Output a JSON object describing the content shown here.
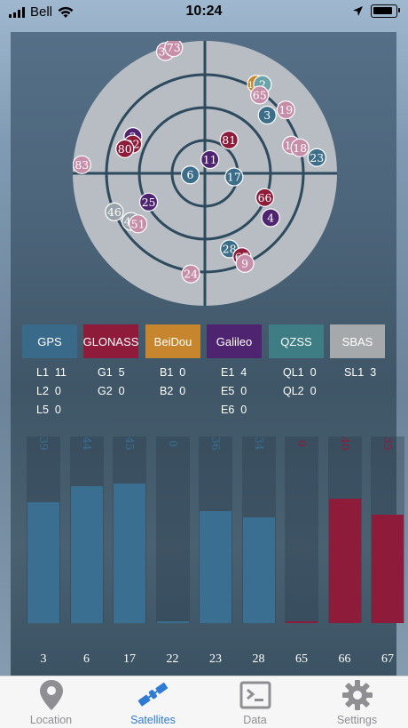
{
  "status_bar": {
    "carrier": "Bell",
    "time": "10:24"
  },
  "sky_plot": {
    "satellites": [
      {
        "id": "30",
        "color": "#c78ea9",
        "az": 342,
        "el": 3
      },
      {
        "id": "73",
        "color": "#c78ea9",
        "az": 346,
        "el": 2
      },
      {
        "id": "114",
        "color": "#c7862d",
        "az": 30,
        "el": 20
      },
      {
        "id": "2",
        "color": "#6ba3a8",
        "az": 33,
        "el": 18
      },
      {
        "id": "65",
        "color": "#c78ea9",
        "az": 35,
        "el": 25
      },
      {
        "id": "3",
        "color": "#3c6e8a",
        "az": 47,
        "el": 32
      },
      {
        "id": "19",
        "color": "#c78ea9",
        "az": 52,
        "el": 20
      },
      {
        "id": "2",
        "color": "#4e2470",
        "az": 297,
        "el": 35
      },
      {
        "id": "82",
        "color": "#8e1b3a",
        "az": 292,
        "el": 37
      },
      {
        "id": "80",
        "color": "#8e1b3a",
        "az": 287,
        "el": 33
      },
      {
        "id": "81",
        "color": "#8e1b3a",
        "az": 36,
        "el": 62
      },
      {
        "id": "11",
        "color": "#4e2470",
        "az": 20,
        "el": 80
      },
      {
        "id": "12",
        "color": "#c78ea9",
        "az": 72,
        "el": 28
      },
      {
        "id": "18",
        "color": "#c78ea9",
        "az": 75,
        "el": 23
      },
      {
        "id": "23",
        "color": "#3c6e8a",
        "az": 82,
        "el": 13
      },
      {
        "id": "83",
        "color": "#c78ea9",
        "az": 274,
        "el": 6
      },
      {
        "id": "6",
        "color": "#3c6e8a",
        "az": 264,
        "el": 80
      },
      {
        "id": "17",
        "color": "#3c6e8a",
        "az": 97,
        "el": 70
      },
      {
        "id": "66",
        "color": "#8e1b3a",
        "az": 112,
        "el": 46
      },
      {
        "id": "4",
        "color": "#4e2470",
        "az": 124,
        "el": 36
      },
      {
        "id": "25",
        "color": "#4e2470",
        "az": 243,
        "el": 47
      },
      {
        "id": "46",
        "color": "#9aa3ab",
        "az": 247,
        "el": 23
      },
      {
        "id": "44",
        "color": "#9aa3ab",
        "az": 237,
        "el": 30
      },
      {
        "id": "51",
        "color": "#c78ea9",
        "az": 233,
        "el": 33
      },
      {
        "id": "28",
        "color": "#3c6e8a",
        "az": 162,
        "el": 36
      },
      {
        "id": "67",
        "color": "#8e1b3a",
        "az": 156,
        "el": 28
      },
      {
        "id": "9",
        "color": "#c78ea9",
        "az": 156,
        "el": 23
      },
      {
        "id": "24",
        "color": "#c78ea9",
        "az": 188,
        "el": 21
      }
    ]
  },
  "constellations": [
    {
      "label": "GPS",
      "color": "#3a6a89",
      "counts": [
        {
          "name": "L1",
          "value": "11"
        },
        {
          "name": "L2",
          "value": "0"
        },
        {
          "name": "L5",
          "value": "0"
        }
      ]
    },
    {
      "label": "GLONASS",
      "color": "#8e1b3a",
      "counts": [
        {
          "name": "G1",
          "value": "5"
        },
        {
          "name": "G2",
          "value": "0"
        }
      ]
    },
    {
      "label": "BeiDou",
      "color": "#c7862d",
      "counts": [
        {
          "name": "B1",
          "value": "0"
        },
        {
          "name": "B2",
          "value": "0"
        }
      ]
    },
    {
      "label": "Galileo",
      "color": "#4e2470",
      "counts": [
        {
          "name": "E1",
          "value": "4"
        },
        {
          "name": "E5",
          "value": "0"
        },
        {
          "name": "E6",
          "value": "0"
        }
      ]
    },
    {
      "label": "QZSS",
      "color": "#3e7d83",
      "counts": [
        {
          "name": "QL1",
          "value": "0"
        },
        {
          "name": "QL2",
          "value": "0"
        }
      ]
    },
    {
      "label": "SBAS",
      "color": "#a6a9ab",
      "counts": [
        {
          "name": "SL1",
          "value": "3"
        }
      ]
    }
  ],
  "snr_chart": {
    "max": 60,
    "bars": [
      {
        "prn": "3",
        "snr": 39,
        "snr_label": "39",
        "color": "#3a6f92"
      },
      {
        "prn": "6",
        "snr": 44,
        "snr_label": "44",
        "color": "#3a6f92"
      },
      {
        "prn": "17",
        "snr": 45,
        "snr_label": "45",
        "color": "#3a6f92"
      },
      {
        "prn": "22",
        "snr": 0,
        "snr_label": "0",
        "color": "#3a6f92"
      },
      {
        "prn": "23",
        "snr": 36,
        "snr_label": "36",
        "color": "#3a6f92"
      },
      {
        "prn": "28",
        "snr": 34,
        "snr_label": "34",
        "color": "#3a6f92"
      },
      {
        "prn": "65",
        "snr": 0,
        "snr_label": "0",
        "color": "#8e1b3a"
      },
      {
        "prn": "66",
        "snr": 40,
        "snr_label": "40",
        "color": "#8e1b3a"
      },
      {
        "prn": "67",
        "snr": 35,
        "snr_label": "35",
        "color": "#8e1b3a"
      }
    ]
  },
  "tabs": [
    {
      "label": "Location",
      "icon": "location-pin-icon",
      "active": false
    },
    {
      "label": "Satellites",
      "icon": "satellite-icon",
      "active": true
    },
    {
      "label": "Data",
      "icon": "terminal-icon",
      "active": false
    },
    {
      "label": "Settings",
      "icon": "gear-icon",
      "active": false
    }
  ]
}
